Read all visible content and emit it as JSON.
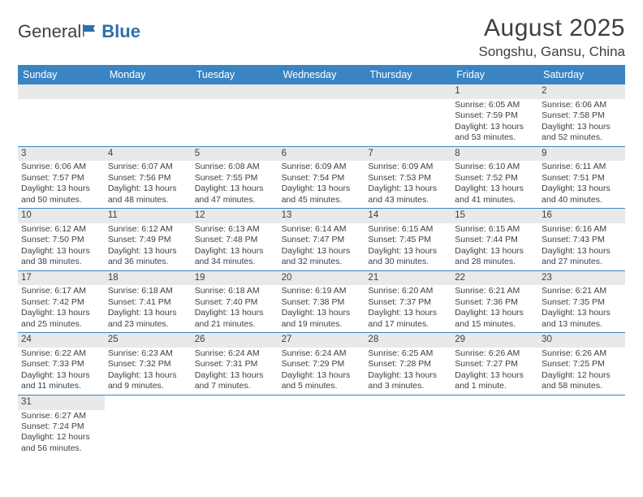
{
  "logo": {
    "text1": "General",
    "text2": "Blue"
  },
  "title": "August 2025",
  "location": "Songshu, Gansu, China",
  "colors": {
    "header_bg": "#3b84c4",
    "header_text": "#ffffff",
    "daynum_bg": "#e9e9e9",
    "text": "#3f3f3f",
    "rule": "#3b84c4",
    "logo_blue": "#2f6fa8"
  },
  "typography": {
    "title_fontsize": 30,
    "location_fontsize": 17,
    "dayheader_fontsize": 12.5,
    "daynum_fontsize": 11.5,
    "detail_fontsize": 10.5
  },
  "dayNames": [
    "Sunday",
    "Monday",
    "Tuesday",
    "Wednesday",
    "Thursday",
    "Friday",
    "Saturday"
  ],
  "weeks": [
    [
      {
        "n": "",
        "sr": "",
        "ss": "",
        "dl": ""
      },
      {
        "n": "",
        "sr": "",
        "ss": "",
        "dl": ""
      },
      {
        "n": "",
        "sr": "",
        "ss": "",
        "dl": ""
      },
      {
        "n": "",
        "sr": "",
        "ss": "",
        "dl": ""
      },
      {
        "n": "",
        "sr": "",
        "ss": "",
        "dl": ""
      },
      {
        "n": "1",
        "sr": "Sunrise: 6:05 AM",
        "ss": "Sunset: 7:59 PM",
        "dl": "Daylight: 13 hours and 53 minutes."
      },
      {
        "n": "2",
        "sr": "Sunrise: 6:06 AM",
        "ss": "Sunset: 7:58 PM",
        "dl": "Daylight: 13 hours and 52 minutes."
      }
    ],
    [
      {
        "n": "3",
        "sr": "Sunrise: 6:06 AM",
        "ss": "Sunset: 7:57 PM",
        "dl": "Daylight: 13 hours and 50 minutes."
      },
      {
        "n": "4",
        "sr": "Sunrise: 6:07 AM",
        "ss": "Sunset: 7:56 PM",
        "dl": "Daylight: 13 hours and 48 minutes."
      },
      {
        "n": "5",
        "sr": "Sunrise: 6:08 AM",
        "ss": "Sunset: 7:55 PM",
        "dl": "Daylight: 13 hours and 47 minutes."
      },
      {
        "n": "6",
        "sr": "Sunrise: 6:09 AM",
        "ss": "Sunset: 7:54 PM",
        "dl": "Daylight: 13 hours and 45 minutes."
      },
      {
        "n": "7",
        "sr": "Sunrise: 6:09 AM",
        "ss": "Sunset: 7:53 PM",
        "dl": "Daylight: 13 hours and 43 minutes."
      },
      {
        "n": "8",
        "sr": "Sunrise: 6:10 AM",
        "ss": "Sunset: 7:52 PM",
        "dl": "Daylight: 13 hours and 41 minutes."
      },
      {
        "n": "9",
        "sr": "Sunrise: 6:11 AM",
        "ss": "Sunset: 7:51 PM",
        "dl": "Daylight: 13 hours and 40 minutes."
      }
    ],
    [
      {
        "n": "10",
        "sr": "Sunrise: 6:12 AM",
        "ss": "Sunset: 7:50 PM",
        "dl": "Daylight: 13 hours and 38 minutes."
      },
      {
        "n": "11",
        "sr": "Sunrise: 6:12 AM",
        "ss": "Sunset: 7:49 PM",
        "dl": "Daylight: 13 hours and 36 minutes."
      },
      {
        "n": "12",
        "sr": "Sunrise: 6:13 AM",
        "ss": "Sunset: 7:48 PM",
        "dl": "Daylight: 13 hours and 34 minutes."
      },
      {
        "n": "13",
        "sr": "Sunrise: 6:14 AM",
        "ss": "Sunset: 7:47 PM",
        "dl": "Daylight: 13 hours and 32 minutes."
      },
      {
        "n": "14",
        "sr": "Sunrise: 6:15 AM",
        "ss": "Sunset: 7:45 PM",
        "dl": "Daylight: 13 hours and 30 minutes."
      },
      {
        "n": "15",
        "sr": "Sunrise: 6:15 AM",
        "ss": "Sunset: 7:44 PM",
        "dl": "Daylight: 13 hours and 28 minutes."
      },
      {
        "n": "16",
        "sr": "Sunrise: 6:16 AM",
        "ss": "Sunset: 7:43 PM",
        "dl": "Daylight: 13 hours and 27 minutes."
      }
    ],
    [
      {
        "n": "17",
        "sr": "Sunrise: 6:17 AM",
        "ss": "Sunset: 7:42 PM",
        "dl": "Daylight: 13 hours and 25 minutes."
      },
      {
        "n": "18",
        "sr": "Sunrise: 6:18 AM",
        "ss": "Sunset: 7:41 PM",
        "dl": "Daylight: 13 hours and 23 minutes."
      },
      {
        "n": "19",
        "sr": "Sunrise: 6:18 AM",
        "ss": "Sunset: 7:40 PM",
        "dl": "Daylight: 13 hours and 21 minutes."
      },
      {
        "n": "20",
        "sr": "Sunrise: 6:19 AM",
        "ss": "Sunset: 7:38 PM",
        "dl": "Daylight: 13 hours and 19 minutes."
      },
      {
        "n": "21",
        "sr": "Sunrise: 6:20 AM",
        "ss": "Sunset: 7:37 PM",
        "dl": "Daylight: 13 hours and 17 minutes."
      },
      {
        "n": "22",
        "sr": "Sunrise: 6:21 AM",
        "ss": "Sunset: 7:36 PM",
        "dl": "Daylight: 13 hours and 15 minutes."
      },
      {
        "n": "23",
        "sr": "Sunrise: 6:21 AM",
        "ss": "Sunset: 7:35 PM",
        "dl": "Daylight: 13 hours and 13 minutes."
      }
    ],
    [
      {
        "n": "24",
        "sr": "Sunrise: 6:22 AM",
        "ss": "Sunset: 7:33 PM",
        "dl": "Daylight: 13 hours and 11 minutes."
      },
      {
        "n": "25",
        "sr": "Sunrise: 6:23 AM",
        "ss": "Sunset: 7:32 PM",
        "dl": "Daylight: 13 hours and 9 minutes."
      },
      {
        "n": "26",
        "sr": "Sunrise: 6:24 AM",
        "ss": "Sunset: 7:31 PM",
        "dl": "Daylight: 13 hours and 7 minutes."
      },
      {
        "n": "27",
        "sr": "Sunrise: 6:24 AM",
        "ss": "Sunset: 7:29 PM",
        "dl": "Daylight: 13 hours and 5 minutes."
      },
      {
        "n": "28",
        "sr": "Sunrise: 6:25 AM",
        "ss": "Sunset: 7:28 PM",
        "dl": "Daylight: 13 hours and 3 minutes."
      },
      {
        "n": "29",
        "sr": "Sunrise: 6:26 AM",
        "ss": "Sunset: 7:27 PM",
        "dl": "Daylight: 13 hours and 1 minute."
      },
      {
        "n": "30",
        "sr": "Sunrise: 6:26 AM",
        "ss": "Sunset: 7:25 PM",
        "dl": "Daylight: 12 hours and 58 minutes."
      }
    ],
    [
      {
        "n": "31",
        "sr": "Sunrise: 6:27 AM",
        "ss": "Sunset: 7:24 PM",
        "dl": "Daylight: 12 hours and 56 minutes."
      },
      {
        "n": "",
        "sr": "",
        "ss": "",
        "dl": ""
      },
      {
        "n": "",
        "sr": "",
        "ss": "",
        "dl": ""
      },
      {
        "n": "",
        "sr": "",
        "ss": "",
        "dl": ""
      },
      {
        "n": "",
        "sr": "",
        "ss": "",
        "dl": ""
      },
      {
        "n": "",
        "sr": "",
        "ss": "",
        "dl": ""
      },
      {
        "n": "",
        "sr": "",
        "ss": "",
        "dl": ""
      }
    ]
  ]
}
